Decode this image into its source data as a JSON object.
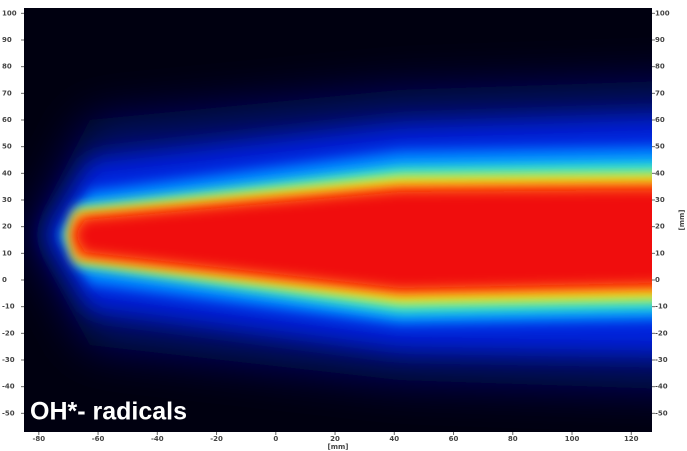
{
  "chart_data": {
    "type": "heatmap",
    "annotation": "OH*- radicals",
    "xlabel": "[mm]",
    "ylabel": "[mm]",
    "xlim": [
      -85,
      127
    ],
    "ylim": [
      -57,
      102
    ],
    "xticks": [
      -80,
      -60,
      -40,
      -20,
      0,
      20,
      40,
      60,
      80,
      100,
      120
    ],
    "yticks": [
      100,
      90,
      80,
      70,
      60,
      50,
      40,
      30,
      20,
      10,
      0,
      -10,
      -20,
      -30,
      -40,
      -50
    ]
  }
}
